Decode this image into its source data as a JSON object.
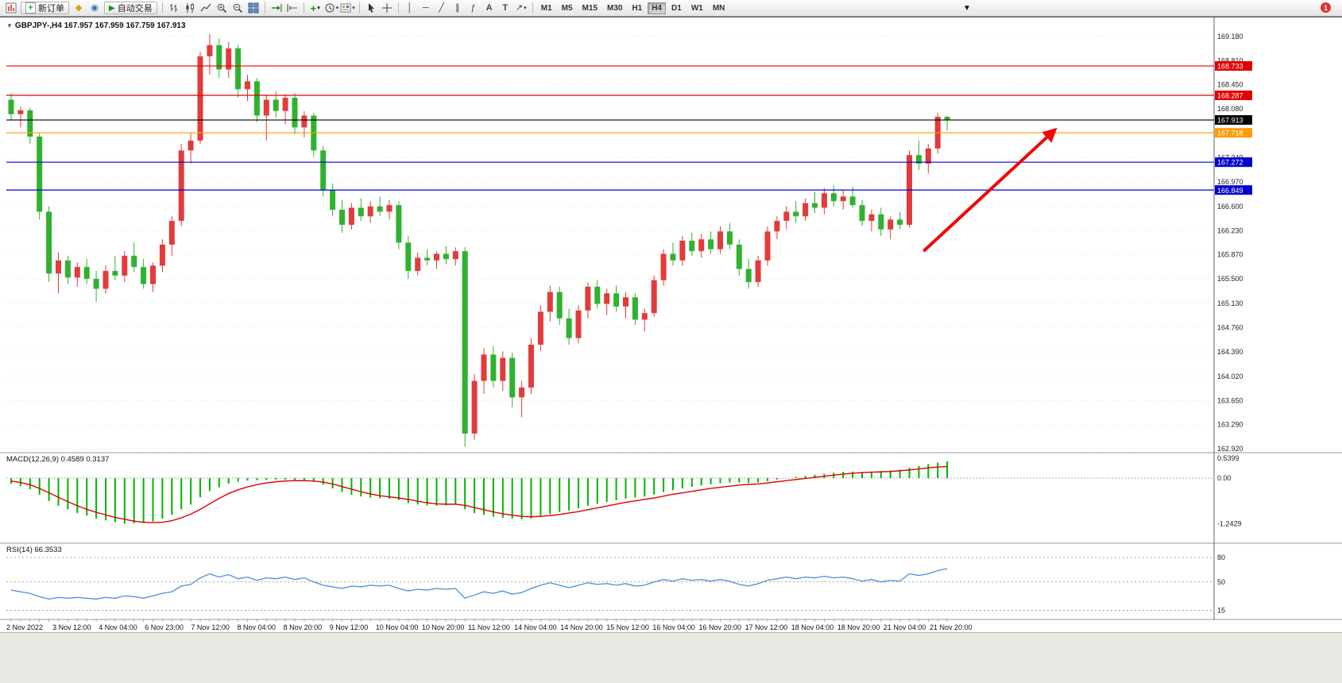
{
  "toolbar": {
    "new_order": "新订单",
    "auto_trading": "自动交易",
    "timeframes": [
      "M1",
      "M5",
      "M15",
      "M30",
      "H1",
      "H4",
      "D1",
      "W1",
      "MN"
    ],
    "active_timeframe": "H4",
    "notification_badge": "1"
  },
  "chart_header": {
    "symbol_info": "GBPJPY-,H4 167.957 167.959 167.759 167.913"
  },
  "indicators": {
    "macd_label": "MACD(12,26,9) 0.4589 0.3137",
    "rsi_label": "RSI(14) 66.3533"
  },
  "chart_data": {
    "type": "candlestick",
    "symbol": "GBPJPY-",
    "timeframe": "H4",
    "current_ohlc": {
      "open": 167.957,
      "high": 167.959,
      "low": 167.759,
      "close": 167.913
    },
    "colors": {
      "bull": "#e23b3b",
      "bear": "#2fb22f",
      "macd_histogram": "#00b400",
      "macd_signal": "#e00000",
      "rsi_line": "#4a90d9"
    },
    "price_axis": {
      "top_price": 169.18,
      "bottom_price": 162.92,
      "ticks": [
        "169.180",
        "168.810",
        "168.450",
        "168.080",
        "167.710",
        "167.340",
        "166.970",
        "166.600",
        "166.230",
        "165.870",
        "165.500",
        "165.130",
        "164.760",
        "164.390",
        "164.020",
        "163.650",
        "163.290",
        "162.920"
      ]
    },
    "levels": [
      {
        "price": 168.733,
        "label": "168.733",
        "color": "#e00000"
      },
      {
        "price": 168.287,
        "label": "168.287",
        "color": "#e00000"
      },
      {
        "price": 167.718,
        "label": "167.718",
        "color": "#ff9c00"
      },
      {
        "price": 167.272,
        "label": "167.272",
        "color": "#0000cc"
      },
      {
        "price": 166.849,
        "label": "166.849",
        "color": "#0000cc"
      },
      {
        "price": 167.913,
        "label": "167.913",
        "color": "#000000"
      }
    ],
    "candles": [
      [
        168.22,
        168.32,
        167.92,
        168.0
      ],
      [
        168.0,
        168.12,
        167.8,
        168.06
      ],
      [
        168.06,
        168.1,
        167.55,
        167.66
      ],
      [
        167.66,
        167.72,
        166.4,
        166.52
      ],
      [
        166.52,
        166.6,
        165.45,
        165.58
      ],
      [
        165.58,
        165.9,
        165.28,
        165.78
      ],
      [
        165.78,
        165.85,
        165.42,
        165.52
      ],
      [
        165.52,
        165.75,
        165.38,
        165.68
      ],
      [
        165.68,
        165.8,
        165.42,
        165.5
      ],
      [
        165.5,
        165.62,
        165.15,
        165.35
      ],
      [
        165.35,
        165.7,
        165.28,
        165.62
      ],
      [
        165.62,
        165.85,
        165.48,
        165.55
      ],
      [
        165.55,
        165.92,
        165.45,
        165.85
      ],
      [
        165.85,
        166.05,
        165.6,
        165.68
      ],
      [
        165.68,
        165.8,
        165.35,
        165.42
      ],
      [
        165.42,
        165.75,
        165.3,
        165.7
      ],
      [
        165.7,
        166.1,
        165.6,
        166.02
      ],
      [
        166.02,
        166.45,
        165.85,
        166.38
      ],
      [
        166.38,
        167.55,
        166.3,
        167.45
      ],
      [
        167.45,
        167.72,
        167.25,
        167.6
      ],
      [
        167.6,
        168.95,
        167.55,
        168.88
      ],
      [
        168.88,
        169.22,
        168.6,
        169.05
      ],
      [
        169.05,
        169.15,
        168.55,
        168.68
      ],
      [
        168.68,
        169.1,
        168.55,
        169.0
      ],
      [
        169.0,
        169.05,
        168.25,
        168.38
      ],
      [
        168.38,
        168.6,
        168.2,
        168.5
      ],
      [
        168.5,
        168.55,
        167.88,
        167.98
      ],
      [
        167.98,
        168.3,
        167.6,
        168.22
      ],
      [
        168.22,
        168.35,
        167.95,
        168.05
      ],
      [
        168.05,
        168.3,
        167.85,
        168.25
      ],
      [
        168.25,
        168.32,
        167.7,
        167.8
      ],
      [
        167.8,
        168.05,
        167.65,
        167.98
      ],
      [
        167.98,
        168.02,
        167.35,
        167.45
      ],
      [
        167.45,
        167.52,
        166.75,
        166.85
      ],
      [
        166.85,
        166.95,
        166.45,
        166.55
      ],
      [
        166.55,
        166.7,
        166.2,
        166.32
      ],
      [
        166.32,
        166.65,
        166.25,
        166.58
      ],
      [
        166.58,
        166.72,
        166.38,
        166.45
      ],
      [
        166.45,
        166.68,
        166.35,
        166.6
      ],
      [
        166.6,
        166.75,
        166.45,
        166.52
      ],
      [
        166.52,
        166.7,
        166.4,
        166.62
      ],
      [
        166.62,
        166.68,
        165.95,
        166.05
      ],
      [
        166.05,
        166.15,
        165.5,
        165.62
      ],
      [
        165.62,
        165.9,
        165.55,
        165.82
      ],
      [
        165.82,
        165.95,
        165.7,
        165.78
      ],
      [
        165.78,
        165.92,
        165.65,
        165.88
      ],
      [
        165.88,
        166.0,
        165.72,
        165.8
      ],
      [
        165.8,
        165.98,
        165.7,
        165.92
      ],
      [
        165.92,
        165.98,
        162.95,
        163.15
      ],
      [
        163.15,
        164.05,
        163.05,
        163.95
      ],
      [
        163.95,
        164.45,
        163.75,
        164.35
      ],
      [
        164.35,
        164.48,
        163.85,
        163.95
      ],
      [
        163.95,
        164.4,
        163.8,
        164.3
      ],
      [
        164.3,
        164.38,
        163.55,
        163.7
      ],
      [
        163.7,
        163.95,
        163.4,
        163.85
      ],
      [
        163.85,
        164.6,
        163.75,
        164.5
      ],
      [
        164.5,
        165.1,
        164.4,
        165.0
      ],
      [
        165.0,
        165.4,
        164.85,
        165.3
      ],
      [
        165.3,
        165.38,
        164.8,
        164.9
      ],
      [
        164.9,
        165.05,
        164.5,
        164.6
      ],
      [
        164.6,
        165.1,
        164.52,
        165.02
      ],
      [
        165.02,
        165.45,
        164.9,
        165.38
      ],
      [
        165.38,
        165.48,
        165.05,
        165.12
      ],
      [
        165.12,
        165.35,
        164.95,
        165.28
      ],
      [
        165.28,
        165.4,
        165.0,
        165.08
      ],
      [
        165.08,
        165.3,
        164.9,
        165.22
      ],
      [
        165.22,
        165.28,
        164.8,
        164.88
      ],
      [
        164.88,
        165.05,
        164.7,
        164.98
      ],
      [
        164.98,
        165.55,
        164.92,
        165.48
      ],
      [
        165.48,
        165.95,
        165.4,
        165.88
      ],
      [
        165.88,
        166.05,
        165.7,
        165.78
      ],
      [
        165.78,
        166.15,
        165.7,
        166.08
      ],
      [
        166.08,
        166.2,
        165.85,
        165.92
      ],
      [
        165.92,
        166.18,
        165.82,
        166.1
      ],
      [
        166.1,
        166.22,
        165.88,
        165.95
      ],
      [
        165.95,
        166.3,
        165.88,
        166.22
      ],
      [
        166.22,
        166.35,
        165.95,
        166.02
      ],
      [
        166.02,
        166.1,
        165.55,
        165.65
      ],
      [
        165.65,
        165.8,
        165.35,
        165.45
      ],
      [
        165.45,
        165.85,
        165.38,
        165.78
      ],
      [
        165.78,
        166.3,
        165.7,
        166.22
      ],
      [
        166.22,
        166.45,
        166.1,
        166.38
      ],
      [
        166.38,
        166.6,
        166.25,
        166.52
      ],
      [
        166.52,
        166.68,
        166.35,
        166.45
      ],
      [
        166.45,
        166.72,
        166.38,
        166.65
      ],
      [
        166.65,
        166.82,
        166.5,
        166.58
      ],
      [
        166.58,
        166.88,
        166.48,
        166.8
      ],
      [
        166.8,
        166.92,
        166.6,
        166.68
      ],
      [
        166.68,
        166.85,
        166.55,
        166.75
      ],
      [
        166.75,
        166.9,
        166.58,
        166.62
      ],
      [
        166.62,
        166.7,
        166.3,
        166.38
      ],
      [
        166.38,
        166.55,
        166.22,
        166.48
      ],
      [
        166.48,
        166.58,
        166.15,
        166.25
      ],
      [
        166.25,
        166.45,
        166.1,
        166.4
      ],
      [
        166.4,
        166.52,
        166.25,
        166.32
      ],
      [
        166.32,
        167.45,
        166.28,
        167.38
      ],
      [
        167.38,
        167.6,
        167.15,
        167.25
      ],
      [
        167.25,
        167.55,
        167.1,
        167.48
      ],
      [
        167.48,
        168.02,
        167.4,
        167.96
      ],
      [
        167.96,
        167.98,
        167.75,
        167.913
      ]
    ],
    "time_labels": [
      "2 Nov 2022",
      "3 Nov 12:00",
      "4 Nov 04:00",
      "6 Nov 23:00",
      "7 Nov 12:00",
      "8 Nov 04:00",
      "8 Nov 20:00",
      "9 Nov 12:00",
      "10 Nov 04:00",
      "10 Nov 20:00",
      "11 Nov 12:00",
      "14 Nov 04:00",
      "14 Nov 20:00",
      "15 Nov 12:00",
      "16 Nov 04:00",
      "16 Nov 20:00",
      "17 Nov 12:00",
      "18 Nov 04:00",
      "18 Nov 20:00",
      "21 Nov 04:00",
      "21 Nov 20:00"
    ],
    "macd": {
      "params": "12,26,9",
      "main_value": 0.4589,
      "signal_value": 0.3137,
      "axis": [
        {
          "label": "0.5399",
          "value": 0.5399
        },
        {
          "label": "0.00",
          "value": 0.0
        },
        {
          "label": "-1.2429",
          "value": -1.2429
        }
      ],
      "histogram": [
        -0.15,
        -0.22,
        -0.3,
        -0.45,
        -0.62,
        -0.75,
        -0.85,
        -0.95,
        -1.02,
        -1.1,
        -1.15,
        -1.2,
        -1.24,
        -1.23,
        -1.22,
        -1.18,
        -1.1,
        -1.0,
        -0.85,
        -0.72,
        -0.52,
        -0.35,
        -0.25,
        -0.15,
        -0.1,
        -0.07,
        -0.06,
        -0.05,
        -0.04,
        -0.04,
        -0.05,
        -0.06,
        -0.1,
        -0.18,
        -0.28,
        -0.38,
        -0.45,
        -0.5,
        -0.53,
        -0.55,
        -0.56,
        -0.6,
        -0.68,
        -0.72,
        -0.74,
        -0.75,
        -0.74,
        -0.72,
        -0.85,
        -0.95,
        -1.0,
        -1.05,
        -1.08,
        -1.1,
        -1.12,
        -1.1,
        -1.05,
        -0.98,
        -0.92,
        -0.88,
        -0.82,
        -0.75,
        -0.7,
        -0.65,
        -0.6,
        -0.56,
        -0.53,
        -0.5,
        -0.45,
        -0.38,
        -0.33,
        -0.28,
        -0.24,
        -0.2,
        -0.17,
        -0.14,
        -0.12,
        -0.12,
        -0.13,
        -0.12,
        -0.08,
        -0.04,
        0.0,
        0.03,
        0.06,
        0.09,
        0.12,
        0.15,
        0.17,
        0.18,
        0.17,
        0.18,
        0.19,
        0.21,
        0.23,
        0.28,
        0.33,
        0.38,
        0.42,
        0.4589
      ],
      "signal": [
        -0.08,
        -0.12,
        -0.18,
        -0.28,
        -0.4,
        -0.52,
        -0.64,
        -0.75,
        -0.85,
        -0.93,
        -1.0,
        -1.07,
        -1.12,
        -1.17,
        -1.2,
        -1.21,
        -1.2,
        -1.16,
        -1.08,
        -0.98,
        -0.85,
        -0.7,
        -0.55,
        -0.42,
        -0.32,
        -0.24,
        -0.18,
        -0.13,
        -0.1,
        -0.08,
        -0.07,
        -0.07,
        -0.08,
        -0.11,
        -0.16,
        -0.23,
        -0.3,
        -0.37,
        -0.43,
        -0.48,
        -0.51,
        -0.54,
        -0.58,
        -0.63,
        -0.67,
        -0.7,
        -0.71,
        -0.71,
        -0.74,
        -0.8,
        -0.86,
        -0.92,
        -0.97,
        -1.01,
        -1.04,
        -1.05,
        -1.04,
        -1.02,
        -0.99,
        -0.95,
        -0.91,
        -0.86,
        -0.81,
        -0.76,
        -0.71,
        -0.66,
        -0.62,
        -0.58,
        -0.54,
        -0.49,
        -0.44,
        -0.4,
        -0.36,
        -0.32,
        -0.28,
        -0.25,
        -0.22,
        -0.19,
        -0.17,
        -0.16,
        -0.13,
        -0.1,
        -0.07,
        -0.04,
        -0.01,
        0.02,
        0.05,
        0.08,
        0.11,
        0.13,
        0.15,
        0.16,
        0.17,
        0.18,
        0.2,
        0.22,
        0.25,
        0.28,
        0.3,
        0.3137
      ]
    },
    "rsi": {
      "period": 14,
      "current_value": 66.3533,
      "levels": [
        80,
        50,
        15
      ],
      "values": [
        40,
        38,
        36,
        32,
        29,
        31,
        30,
        31,
        30,
        29,
        31,
        30,
        33,
        32,
        30,
        33,
        36,
        38,
        45,
        47,
        55,
        60,
        56,
        59,
        54,
        56,
        52,
        55,
        54,
        56,
        53,
        55,
        50,
        46,
        44,
        42,
        45,
        44,
        46,
        45,
        46,
        42,
        39,
        41,
        40,
        42,
        41,
        42,
        30,
        34,
        38,
        36,
        39,
        35,
        37,
        42,
        46,
        49,
        46,
        43,
        46,
        49,
        47,
        48,
        46,
        48,
        45,
        46,
        50,
        53,
        51,
        54,
        52,
        53,
        51,
        53,
        51,
        47,
        45,
        48,
        52,
        54,
        56,
        54,
        56,
        55,
        57,
        55,
        56,
        54,
        51,
        53,
        50,
        52,
        51,
        60,
        58,
        60,
        64,
        66.35
      ]
    },
    "arrow": {
      "bar_from": 96.5,
      "price_from": 165.92,
      "bar_to": 110.3,
      "price_to": 167.75,
      "color": "#f00808"
    }
  }
}
